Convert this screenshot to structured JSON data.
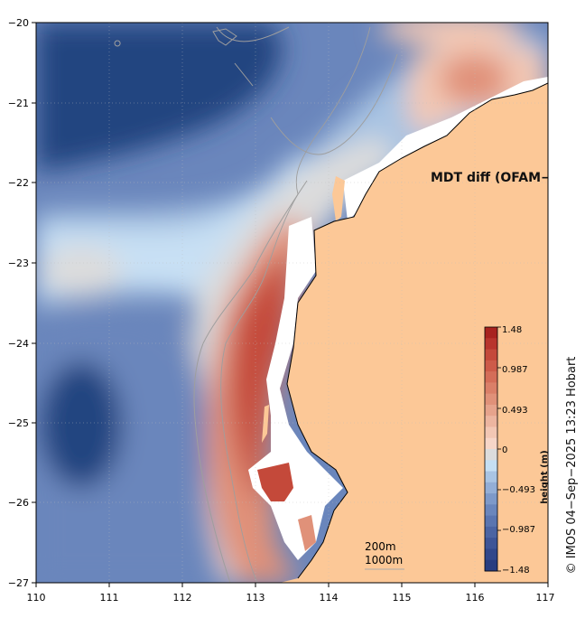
{
  "map": {
    "title": "MDT diff (OFAM−CMEMS)",
    "x_ticks": [
      "110",
      "111",
      "112",
      "113",
      "114",
      "115",
      "116",
      "117"
    ],
    "y_ticks": [
      "−20",
      "−21",
      "−22",
      "−23",
      "−24",
      "−25",
      "−26",
      "−27"
    ],
    "depth_labels": [
      "200m",
      "1000m"
    ],
    "credit": "© IMOS 04−Sep−2025 13:23 Hobart"
  },
  "colorbar": {
    "title": "height (m)",
    "labels": [
      "1.48",
      "0.987",
      "0.493",
      "0",
      "−0.493",
      "−0.987",
      "−1.48"
    ],
    "colors": [
      "#a8231f",
      "#b8352d",
      "#c4493a",
      "#cd5b49",
      "#d46d58",
      "#da7f68",
      "#e09179",
      "#e6a38c",
      "#ecb5a0",
      "#f2c7b4",
      "#f6d6c8",
      "#dcdcdc",
      "#c5dff3",
      "#a9c4e3",
      "#93aed6",
      "#7d99c9",
      "#6a86bc",
      "#5a75b0",
      "#4b64a3",
      "#3e5597",
      "#32488b",
      "#283d80"
    ]
  },
  "colors": {
    "land": "#fcc897",
    "ocean_deep": "#234580",
    "ocean_mid": "#6a86bc",
    "ocean_light": "#a9c4e3",
    "ocean_pale": "#c8e0f4",
    "neutral": "#dcdcdc",
    "warm_light": "#f2c7b4",
    "warm_mid": "#e09179",
    "warm_strong": "#c4493a",
    "warm_dark": "#a8231f",
    "contour": "#9e9e9e"
  }
}
